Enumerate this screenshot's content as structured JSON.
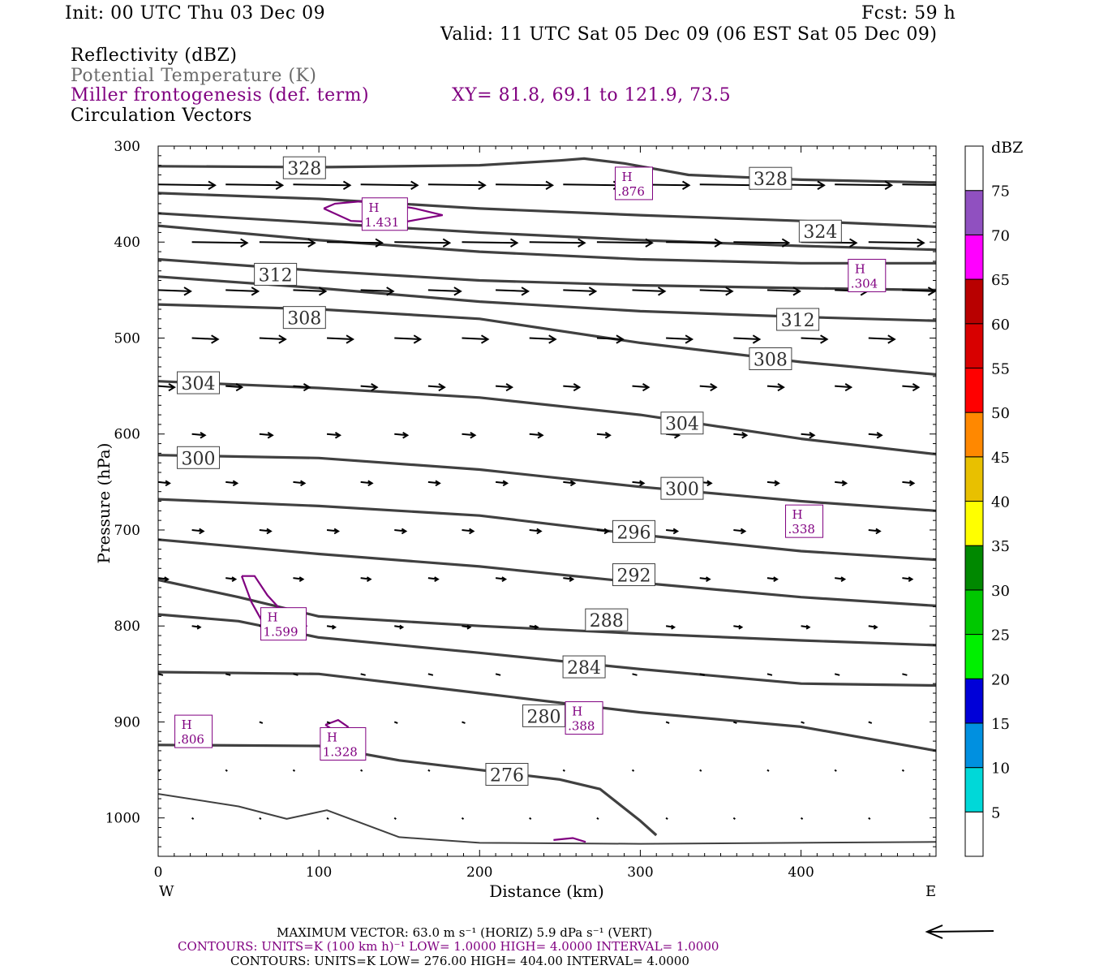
{
  "header": {
    "init": "Init: 00 UTC Thu 03 Dec 09",
    "fcst": "Fcst:   59 h",
    "valid": "Valid: 11 UTC Sat 05 Dec 09 (06 EST Sat 05 Dec 09)"
  },
  "fields": {
    "reflectivity": "Reflectivity (dBZ)",
    "theta": "Potential Temperature (K)",
    "frontogenesis": "Miller frontogenesis (def. term)",
    "xy": "XY=  81.8, 69.1 to 121.9, 73.5",
    "vectors": "Circulation Vectors"
  },
  "colors": {
    "theta_contour": "#404040",
    "frontogenesis": "#800080",
    "vectors": "#000000"
  },
  "chart_data": {
    "type": "line",
    "xlabel": "Distance (km)",
    "ylabel": "Pressure (hPa)",
    "xlim": [
      0,
      484
    ],
    "ylim": [
      1040,
      300
    ],
    "x_ticks": [
      0,
      100,
      200,
      300,
      400
    ],
    "y_ticks": [
      300,
      400,
      500,
      600,
      700,
      800,
      900,
      1000
    ],
    "x_end_labels": {
      "left": "W",
      "right": "E"
    },
    "theta_labels": [
      {
        "text": "328",
        "x": 91,
        "p": 323
      },
      {
        "text": "328",
        "x": 381,
        "p": 334
      },
      {
        "text": "324",
        "x": 412,
        "p": 389
      },
      {
        "text": "312",
        "x": 73,
        "p": 434
      },
      {
        "text": "312",
        "x": 398,
        "p": 481
      },
      {
        "text": "308",
        "x": 91,
        "p": 479
      },
      {
        "text": "308",
        "x": 381,
        "p": 522
      },
      {
        "text": "304",
        "x": 25,
        "p": 547
      },
      {
        "text": "304",
        "x": 326,
        "p": 589
      },
      {
        "text": "300",
        "x": 25,
        "p": 625
      },
      {
        "text": "300",
        "x": 326,
        "p": 657
      },
      {
        "text": "296",
        "x": 296,
        "p": 702
      },
      {
        "text": "292",
        "x": 296,
        "p": 747
      },
      {
        "text": "288",
        "x": 279,
        "p": 794
      },
      {
        "text": "284",
        "x": 265,
        "p": 843
      },
      {
        "text": "280",
        "x": 240,
        "p": 894
      },
      {
        "text": "276",
        "x": 217,
        "p": 955
      }
    ],
    "theta_contours": [
      [
        [
          0,
          321
        ],
        [
          100,
          322
        ],
        [
          200,
          320
        ],
        [
          250,
          315
        ],
        [
          265,
          313
        ],
        [
          290,
          318
        ],
        [
          330,
          330
        ],
        [
          400,
          335
        ],
        [
          484,
          338
        ]
      ],
      [
        [
          0,
          349
        ],
        [
          100,
          355
        ],
        [
          200,
          365
        ],
        [
          300,
          372
        ],
        [
          400,
          378
        ],
        [
          484,
          384
        ]
      ],
      [
        [
          0,
          370
        ],
        [
          100,
          380
        ],
        [
          200,
          390
        ],
        [
          300,
          398
        ],
        [
          400,
          404
        ],
        [
          484,
          408
        ]
      ],
      [
        [
          0,
          383
        ],
        [
          100,
          398
        ],
        [
          200,
          410
        ],
        [
          300,
          418
        ],
        [
          400,
          422
        ],
        [
          484,
          422
        ]
      ],
      [
        [
          0,
          418
        ],
        [
          100,
          430
        ],
        [
          200,
          440
        ],
        [
          300,
          445
        ],
        [
          400,
          448
        ],
        [
          484,
          450
        ]
      ],
      [
        [
          0,
          436
        ],
        [
          100,
          448
        ],
        [
          200,
          462
        ],
        [
          300,
          472
        ],
        [
          400,
          478
        ],
        [
          484,
          482
        ]
      ],
      [
        [
          0,
          465
        ],
        [
          100,
          470
        ],
        [
          200,
          480
        ],
        [
          300,
          505
        ],
        [
          400,
          525
        ],
        [
          484,
          538
        ]
      ],
      [
        [
          0,
          545
        ],
        [
          100,
          552
        ],
        [
          200,
          562
        ],
        [
          300,
          580
        ],
        [
          400,
          605
        ],
        [
          484,
          621
        ]
      ],
      [
        [
          0,
          622
        ],
        [
          100,
          625
        ],
        [
          200,
          637
        ],
        [
          300,
          655
        ],
        [
          400,
          670
        ],
        [
          484,
          680
        ]
      ],
      [
        [
          0,
          668
        ],
        [
          100,
          675
        ],
        [
          200,
          685
        ],
        [
          300,
          705
        ],
        [
          400,
          722
        ],
        [
          484,
          731
        ]
      ],
      [
        [
          0,
          710
        ],
        [
          100,
          725
        ],
        [
          200,
          738
        ],
        [
          300,
          755
        ],
        [
          400,
          770
        ],
        [
          484,
          779
        ]
      ],
      [
        [
          0,
          752
        ],
        [
          50,
          770
        ],
        [
          100,
          790
        ],
        [
          200,
          800
        ],
        [
          300,
          808
        ],
        [
          400,
          815
        ],
        [
          484,
          820
        ]
      ],
      [
        [
          0,
          788
        ],
        [
          50,
          795
        ],
        [
          100,
          812
        ],
        [
          200,
          828
        ],
        [
          300,
          845
        ],
        [
          400,
          860
        ],
        [
          484,
          862
        ]
      ],
      [
        [
          0,
          848
        ],
        [
          100,
          850
        ],
        [
          200,
          870
        ],
        [
          300,
          890
        ],
        [
          400,
          905
        ],
        [
          484,
          930
        ]
      ],
      [
        [
          0,
          924
        ],
        [
          100,
          925
        ],
        [
          150,
          940
        ],
        [
          250,
          960
        ],
        [
          275,
          970
        ],
        [
          300,
          1003
        ],
        [
          310,
          1018
        ]
      ],
      [
        [
          0,
          975
        ],
        [
          50,
          988
        ],
        [
          80,
          1001
        ],
        [
          105,
          992
        ],
        [
          150,
          1020
        ],
        [
          200,
          1026
        ],
        [
          300,
          1027
        ],
        [
          484,
          1025
        ]
      ]
    ],
    "frontogenesis_highs": [
      {
        "label": "H",
        "value": "1.431",
        "x": 141,
        "p": 370
      },
      {
        "label": "H",
        "value": ".876",
        "x": 296,
        "p": 338
      },
      {
        "label": "H",
        "value": ".304",
        "x": 441,
        "p": 434
      },
      {
        "label": "H",
        "value": ".338",
        "x": 402,
        "p": 690
      },
      {
        "label": "H",
        "value": "1.599",
        "x": 78,
        "p": 797
      },
      {
        "label": "H",
        "value": ".806",
        "x": 22,
        "p": 909
      },
      {
        "label": "H",
        "value": "1.328",
        "x": 115,
        "p": 922
      },
      {
        "label": "H",
        "value": ".388",
        "x": 265,
        "p": 895
      }
    ],
    "frontogenesis_contours": [
      [
        [
          103,
          365
        ],
        [
          110,
          360
        ],
        [
          130,
          357
        ],
        [
          160,
          365
        ],
        [
          177,
          372
        ],
        [
          150,
          380
        ],
        [
          120,
          378
        ],
        [
          103,
          365
        ]
      ],
      [
        [
          52,
          748
        ],
        [
          60,
          748
        ],
        [
          68,
          768
        ],
        [
          80,
          790
        ],
        [
          92,
          800
        ],
        [
          80,
          812
        ],
        [
          68,
          805
        ],
        [
          58,
          775
        ],
        [
          52,
          748
        ]
      ],
      [
        [
          104,
          903
        ],
        [
          112,
          898
        ],
        [
          118,
          905
        ],
        [
          115,
          915
        ],
        [
          104,
          903
        ]
      ],
      [
        [
          246,
          1023
        ],
        [
          258,
          1021
        ],
        [
          266,
          1025
        ]
      ]
    ],
    "vector_levels": [
      340,
      400,
      450,
      500,
      550,
      600,
      650,
      700,
      750,
      800,
      850,
      900,
      950,
      1000
    ],
    "vector_columns": [
      0,
      42,
      84,
      126,
      168,
      210,
      252,
      295,
      337,
      379,
      421,
      463
    ],
    "vector_u_scale": [
      35,
      34,
      20,
      16,
      10,
      8,
      7,
      7,
      6,
      5,
      3,
      2,
      1,
      0.5
    ],
    "colorbar": {
      "title": "dBZ",
      "labels": [
        "5",
        "10",
        "15",
        "20",
        "25",
        "30",
        "35",
        "40",
        "45",
        "50",
        "55",
        "60",
        "65",
        "70",
        "75"
      ],
      "colors": [
        "#00d8d8",
        "#0090e0",
        "#0000d8",
        "#00f000",
        "#00c800",
        "#008800",
        "#ffff00",
        "#e8c000",
        "#ff8800",
        "#ff0000",
        "#d80000",
        "#b80000",
        "#ff00ff",
        "#9050c0",
        "#ffffff"
      ]
    }
  },
  "footer": {
    "maxvec": "MAXIMUM VECTOR:  63.0 m s⁻¹ (HORIZ)          5.9 dPa s⁻¹ (VERT)",
    "contours1": "CONTOURS:  UNITS=K (100 km h)⁻¹  LOW=   1.0000       HIGH=   4.0000       INTERVAL=    1.0000",
    "contours2": "CONTOURS:  UNITS=K  LOW=   276.00        HIGH=   404.00        INTERVAL=    4.0000"
  }
}
